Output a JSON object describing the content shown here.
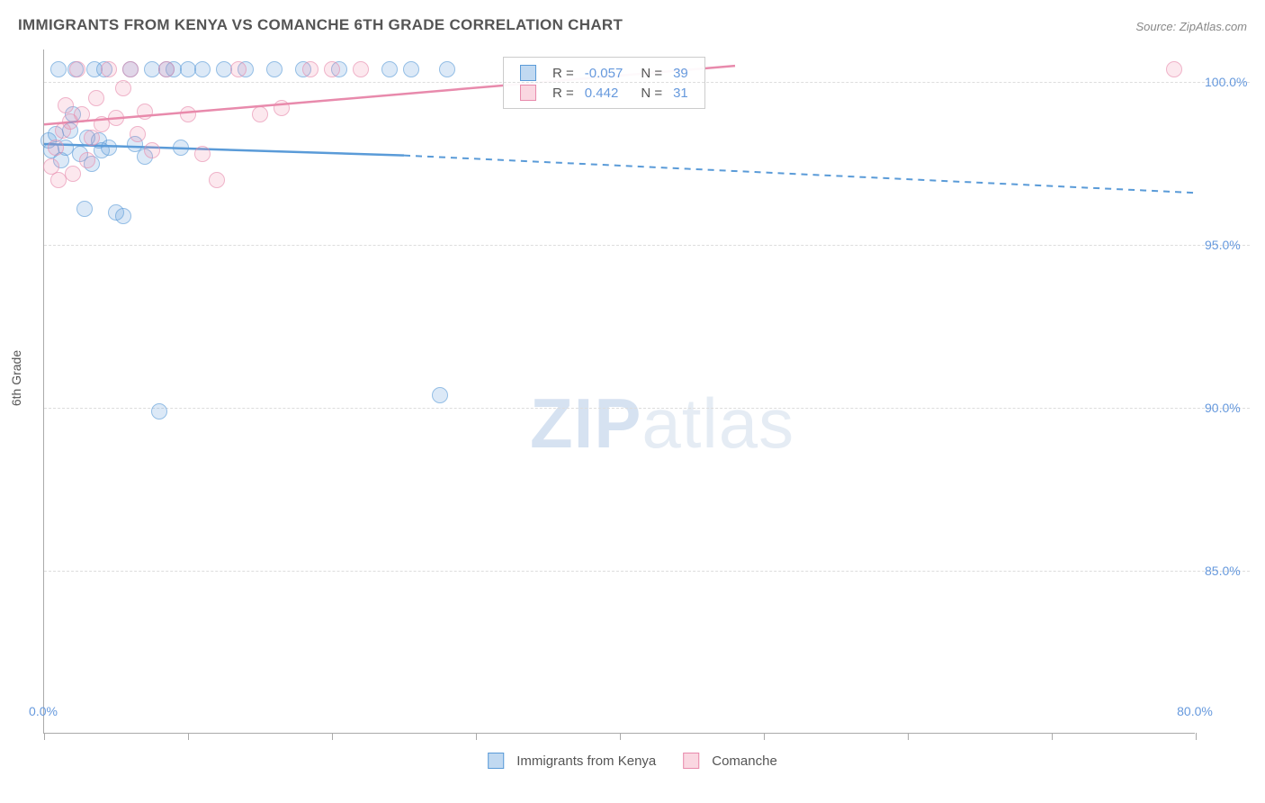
{
  "title": "IMMIGRANTS FROM KENYA VS COMANCHE 6TH GRADE CORRELATION CHART",
  "source": "Source: ZipAtlas.com",
  "y_axis_label": "6th Grade",
  "watermark_bold": "ZIP",
  "watermark_light": "atlas",
  "chart": {
    "type": "scatter",
    "xlim": [
      0,
      80
    ],
    "ylim": [
      80,
      101
    ],
    "x_ticks": [
      0,
      10,
      20,
      30,
      40,
      50,
      60,
      70,
      80
    ],
    "x_tick_labels": {
      "0": "0.0%",
      "80": "80.0%"
    },
    "y_ticks": [
      85,
      90,
      95,
      100
    ],
    "y_tick_labels": [
      "85.0%",
      "90.0%",
      "95.0%",
      "100.0%"
    ],
    "grid_color": "#dddddd",
    "background_color": "#ffffff",
    "axis_color": "#aaaaaa",
    "marker_size": 18,
    "series": [
      {
        "name": "Immigrants from Kenya",
        "color_fill": "rgba(100,160,220,0.35)",
        "color_stroke": "#5a9bd8",
        "class": "blue",
        "R": "-0.057",
        "N": "39",
        "trend": {
          "x1": 0,
          "y1": 98.1,
          "x2_solid": 25,
          "y2_solid": 97.75,
          "x2": 80,
          "y2": 96.6
        },
        "points": [
          [
            0.3,
            98.2
          ],
          [
            0.5,
            97.9
          ],
          [
            0.8,
            98.4
          ],
          [
            1.0,
            100.4
          ],
          [
            1.2,
            97.6
          ],
          [
            1.5,
            98.0
          ],
          [
            1.8,
            98.5
          ],
          [
            2.0,
            99.0
          ],
          [
            2.2,
            100.4
          ],
          [
            2.5,
            97.8
          ],
          [
            2.8,
            96.1
          ],
          [
            3.0,
            98.3
          ],
          [
            3.3,
            97.5
          ],
          [
            3.5,
            100.4
          ],
          [
            3.8,
            98.2
          ],
          [
            4.0,
            97.9
          ],
          [
            4.2,
            100.4
          ],
          [
            4.5,
            98.0
          ],
          [
            5.0,
            96.0
          ],
          [
            5.5,
            95.9
          ],
          [
            6.0,
            100.4
          ],
          [
            6.3,
            98.1
          ],
          [
            7.0,
            97.7
          ],
          [
            7.5,
            100.4
          ],
          [
            8.0,
            89.9
          ],
          [
            8.5,
            100.4
          ],
          [
            9.0,
            100.4
          ],
          [
            9.5,
            98.0
          ],
          [
            10.0,
            100.4
          ],
          [
            11.0,
            100.4
          ],
          [
            12.5,
            100.4
          ],
          [
            14.0,
            100.4
          ],
          [
            16.0,
            100.4
          ],
          [
            18.0,
            100.4
          ],
          [
            20.5,
            100.4
          ],
          [
            24.0,
            100.4
          ],
          [
            25.5,
            100.4
          ],
          [
            27.5,
            90.4
          ],
          [
            28.0,
            100.4
          ]
        ]
      },
      {
        "name": "Comanche",
        "color_fill": "rgba(240,140,170,0.3)",
        "color_stroke": "#e88aac",
        "class": "pink",
        "R": "0.442",
        "N": "31",
        "trend": {
          "x1": 0,
          "y1": 98.7,
          "x2_solid": 48,
          "y2_solid": 100.5,
          "x2": 48,
          "y2": 100.5
        },
        "points": [
          [
            0.5,
            97.4
          ],
          [
            0.8,
            98.0
          ],
          [
            1.0,
            97.0
          ],
          [
            1.3,
            98.5
          ],
          [
            1.5,
            99.3
          ],
          [
            1.8,
            98.8
          ],
          [
            2.0,
            97.2
          ],
          [
            2.3,
            100.4
          ],
          [
            2.6,
            99.0
          ],
          [
            3.0,
            97.6
          ],
          [
            3.3,
            98.3
          ],
          [
            3.6,
            99.5
          ],
          [
            4.0,
            98.7
          ],
          [
            4.5,
            100.4
          ],
          [
            5.0,
            98.9
          ],
          [
            5.5,
            99.8
          ],
          [
            6.0,
            100.4
          ],
          [
            6.5,
            98.4
          ],
          [
            7.0,
            99.1
          ],
          [
            7.5,
            97.9
          ],
          [
            8.5,
            100.4
          ],
          [
            10.0,
            99.0
          ],
          [
            11.0,
            97.8
          ],
          [
            12.0,
            97.0
          ],
          [
            13.5,
            100.4
          ],
          [
            15.0,
            99.0
          ],
          [
            16.5,
            99.2
          ],
          [
            18.5,
            100.4
          ],
          [
            20.0,
            100.4
          ],
          [
            22.0,
            100.4
          ],
          [
            78.5,
            100.4
          ]
        ]
      }
    ]
  },
  "legend_stats": {
    "r_label": "R =",
    "n_label": "N ="
  },
  "bottom_legend": [
    {
      "label": "Immigrants from Kenya",
      "class": "blue"
    },
    {
      "label": "Comanche",
      "class": "pink"
    }
  ]
}
